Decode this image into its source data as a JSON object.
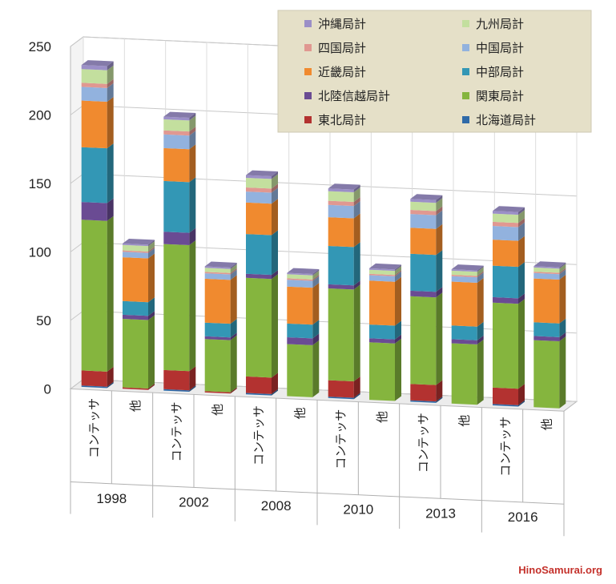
{
  "chart_data": {
    "type": "bar",
    "stacked": true,
    "three_d": true,
    "title": "",
    "xlabel": "",
    "ylabel": "",
    "ylim": [
      0,
      250
    ],
    "yticks": [
      "0",
      "50",
      "100",
      "150",
      "200",
      "250"
    ],
    "grid": true,
    "legend_position": "top-right",
    "categories": [
      "コンテッサ",
      "他",
      "コンテッサ",
      "他",
      "コンテッサ",
      "他",
      "コンテッサ",
      "他",
      "コンテッサ",
      "他",
      "コンテッサ",
      "他"
    ],
    "groups": [
      {
        "label": "1998",
        "span": [
          0,
          1
        ]
      },
      {
        "label": "2002",
        "span": [
          2,
          3
        ]
      },
      {
        "label": "2008",
        "span": [
          4,
          5
        ]
      },
      {
        "label": "2010",
        "span": [
          6,
          7
        ]
      },
      {
        "label": "2013",
        "span": [
          8,
          9
        ]
      },
      {
        "label": "2016",
        "span": [
          10,
          11
        ]
      }
    ],
    "series": [
      {
        "name": "北海道局計",
        "color": "#2f6aa8",
        "values": [
          1,
          0,
          1,
          0,
          1,
          0,
          1,
          0,
          1,
          0,
          1,
          0
        ]
      },
      {
        "name": "東北局計",
        "color": "#b33230",
        "values": [
          11,
          1,
          14,
          1,
          12,
          0,
          12,
          0,
          12,
          0,
          12,
          0
        ]
      },
      {
        "name": "関東局計",
        "color": "#85b53e",
        "values": [
          110,
          50,
          92,
          38,
          72,
          38,
          67,
          42,
          64,
          44,
          62,
          49
        ]
      },
      {
        "name": "北陸信越局計",
        "color": "#6a4b93",
        "values": [
          13,
          3,
          9,
          2,
          3,
          5,
          3,
          3,
          4,
          3,
          4,
          3
        ]
      },
      {
        "name": "中部局計",
        "color": "#3397b5",
        "values": [
          40,
          10,
          37,
          10,
          29,
          10,
          28,
          10,
          27,
          10,
          23,
          10
        ]
      },
      {
        "name": "近畿局計",
        "color": "#f08a2f",
        "values": [
          34,
          32,
          24,
          32,
          23,
          27,
          21,
          32,
          19,
          32,
          19,
          32
        ]
      },
      {
        "name": "中国局計",
        "color": "#92b2de",
        "values": [
          10,
          4,
          10,
          4,
          8,
          5,
          9,
          4,
          10,
          4,
          10,
          4
        ]
      },
      {
        "name": "四国局計",
        "color": "#e09891",
        "values": [
          3,
          1,
          3,
          1,
          3,
          1,
          3,
          1,
          3,
          1,
          3,
          1
        ]
      },
      {
        "name": "九州局計",
        "color": "#c3df9e",
        "values": [
          10,
          4,
          8,
          3,
          7,
          3,
          7,
          3,
          6,
          3,
          6,
          3
        ]
      },
      {
        "name": "沖縄局計",
        "color": "#9b8fc7",
        "values": [
          3,
          1,
          2,
          1,
          2,
          1,
          2,
          1,
          2,
          1,
          2,
          1
        ]
      }
    ],
    "legend_order": [
      "沖縄局計",
      "九州局計",
      "四国局計",
      "中国局計",
      "近畿局計",
      "中部局計",
      "北陸信越局計",
      "関東局計",
      "東北局計",
      "北海道局計"
    ]
  },
  "watermark": "HinoSamurai.org"
}
